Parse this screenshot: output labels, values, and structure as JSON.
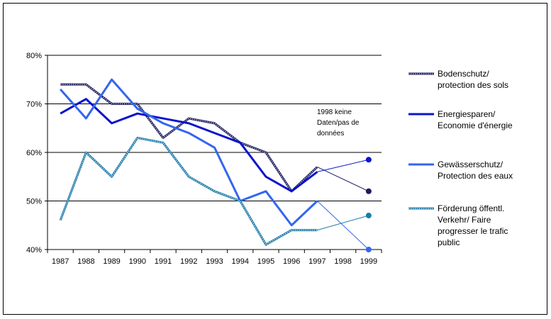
{
  "chart_data": {
    "type": "line",
    "title": "",
    "xlabel": "",
    "ylabel": "",
    "ylim": [
      40,
      80
    ],
    "yticks": [
      "40%",
      "50%",
      "60%",
      "70%",
      "80%"
    ],
    "ytick_values": [
      40,
      50,
      60,
      70,
      80
    ],
    "categories": [
      "1987",
      "1988",
      "1989",
      "1990",
      "1991",
      "1992",
      "1993",
      "1994",
      "1995",
      "1996",
      "1997",
      "1998",
      "1999"
    ],
    "annotation": [
      "1998 keine",
      "Daten/pas de",
      "données"
    ],
    "legend_position": "right",
    "series": [
      {
        "name": "Bodenschutz/ protection des sols",
        "legend_lines": [
          "Bodenschutz/",
          "protection des sols"
        ],
        "color": "#1a1a5e",
        "style": "double",
        "values": [
          74,
          74,
          70,
          70,
          63,
          67,
          66,
          62,
          60,
          52,
          57,
          null,
          52
        ]
      },
      {
        "name": "Energiesparen/ Economie d'énergie",
        "legend_lines": [
          "Energiesparen/",
          "Economie d'énergie"
        ],
        "color": "#0a14cc",
        "style": "solid",
        "values": [
          68,
          71,
          66,
          68,
          67,
          66,
          64,
          62,
          55,
          52,
          56,
          null,
          58.5
        ]
      },
      {
        "name": "Gewässerschutz/ Protection des eaux",
        "legend_lines": [
          "Gewässerschutz/",
          "Protection des eaux"
        ],
        "color": "#3366ee",
        "style": "solid",
        "values": [
          73,
          67,
          75,
          69,
          66,
          64,
          61,
          50,
          52,
          45,
          50,
          null,
          40
        ]
      },
      {
        "name": "Förderung öffentl. Verkehr/ Faire progresser le trafic public",
        "legend_lines": [
          "Förderung öffentl.",
          "Verkehr/ Faire",
          "progresser le trafic",
          "public"
        ],
        "color": "#1c7aa8",
        "style": "double",
        "values": [
          46,
          60,
          55,
          63,
          62,
          55,
          52,
          50,
          41,
          44,
          44,
          null,
          47
        ]
      }
    ]
  }
}
